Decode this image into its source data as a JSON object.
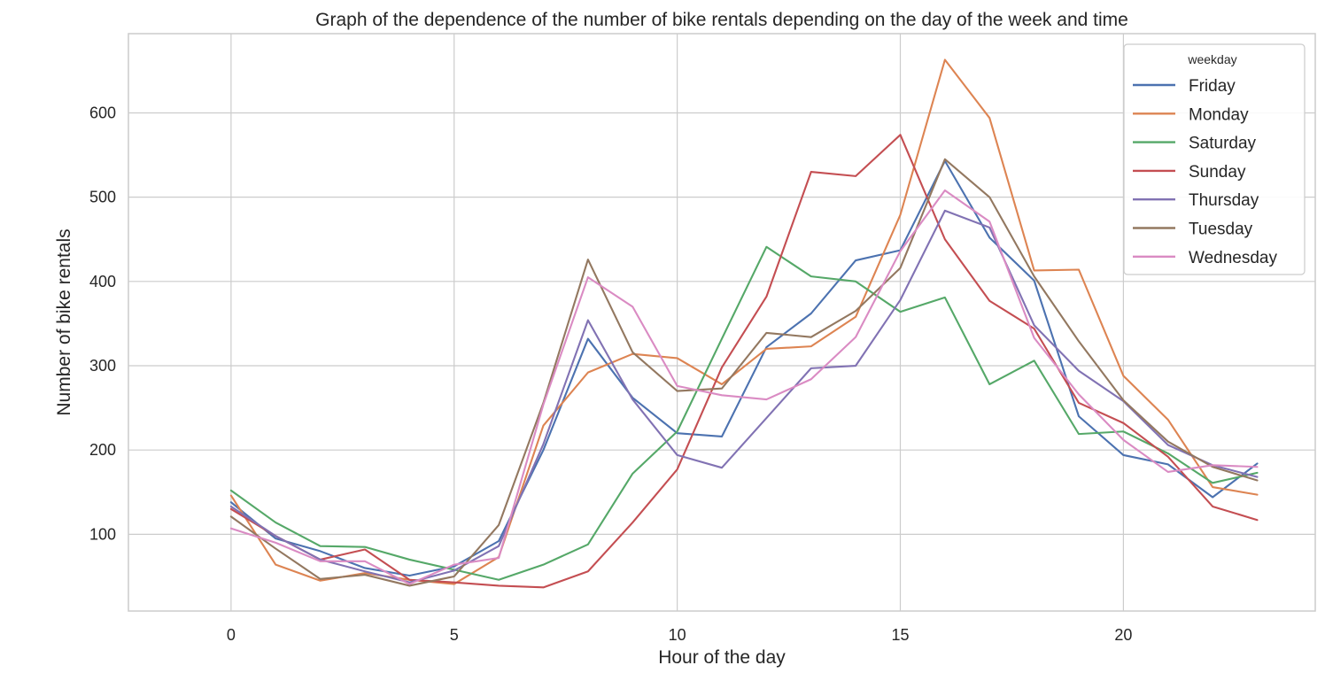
{
  "chart_data": {
    "type": "line",
    "title": "Graph of the dependence of the number of bike rentals depending on the day of the week and time",
    "xlabel": "Hour of the day",
    "ylabel": "Number of bike rentals",
    "xlim": [
      -2.3,
      24.3
    ],
    "ylim": [
      9,
      694
    ],
    "xticks": [
      0,
      5,
      10,
      15,
      20
    ],
    "yticks": [
      100,
      200,
      300,
      400,
      500,
      600
    ],
    "grid": true,
    "legend": {
      "title": "weekday",
      "placement": "top-right"
    },
    "x": [
      0,
      1,
      2,
      3,
      4,
      5,
      6,
      7,
      8,
      9,
      10,
      11,
      12,
      13,
      14,
      15,
      16,
      17,
      18,
      19,
      20,
      21,
      22,
      23
    ],
    "series": [
      {
        "name": "Friday",
        "color": "#4c72b0",
        "values": [
          138,
          95,
          80,
          60,
          51,
          62,
          92,
          200,
          332,
          262,
          220,
          216,
          322,
          362,
          425,
          437,
          543,
          452,
          401,
          240,
          194,
          183,
          144,
          184
        ]
      },
      {
        "name": "Monday",
        "color": "#dd8452",
        "values": [
          146,
          64,
          45,
          54,
          46,
          41,
          73,
          229,
          292,
          314,
          309,
          278,
          320,
          323,
          358,
          479,
          663,
          594,
          413,
          414,
          288,
          236,
          156,
          147
        ]
      },
      {
        "name": "Saturday",
        "color": "#55a868",
        "values": [
          152,
          114,
          86,
          85,
          70,
          58,
          46,
          64,
          88,
          172,
          222,
          332,
          441,
          406,
          400,
          364,
          381,
          278,
          306,
          219,
          222,
          196,
          161,
          173
        ]
      },
      {
        "name": "Sunday",
        "color": "#c44e52",
        "values": [
          130,
          98,
          70,
          82,
          46,
          43,
          39,
          37,
          56,
          114,
          177,
          298,
          382,
          530,
          525,
          574,
          450,
          377,
          344,
          256,
          232,
          192,
          133,
          117
        ]
      },
      {
        "name": "Thursday",
        "color": "#8172b3",
        "values": [
          133,
          98,
          70,
          56,
          43,
          57,
          86,
          207,
          354,
          260,
          194,
          179,
          238,
          297,
          300,
          378,
          484,
          464,
          348,
          294,
          258,
          206,
          182,
          168
        ]
      },
      {
        "name": "Tuesday",
        "color": "#937860",
        "values": [
          121,
          83,
          47,
          52,
          39,
          50,
          111,
          256,
          426,
          316,
          270,
          273,
          339,
          334,
          365,
          416,
          545,
          500,
          406,
          329,
          259,
          210,
          180,
          164
        ]
      },
      {
        "name": "Wednesday",
        "color": "#da8bc3",
        "values": [
          107,
          90,
          68,
          68,
          41,
          64,
          72,
          254,
          405,
          370,
          276,
          265,
          260,
          284,
          334,
          436,
          508,
          471,
          333,
          266,
          212,
          174,
          182,
          180
        ]
      }
    ]
  }
}
